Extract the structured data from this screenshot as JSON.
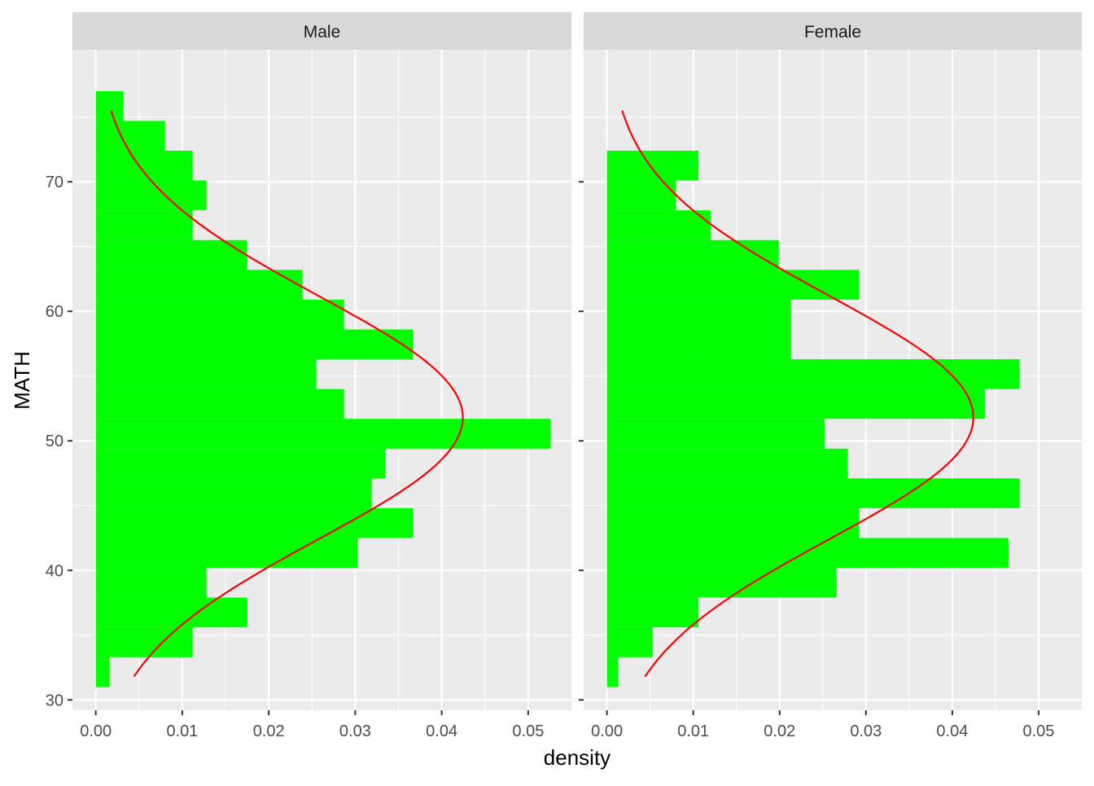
{
  "chart_data": {
    "type": "bar",
    "orientation": "horizontal",
    "xlabel": "density",
    "ylabel": "MATH",
    "xlim": [
      -0.0027,
      0.055
    ],
    "ylim": [
      29.2,
      80.2
    ],
    "x_ticks": [
      0.0,
      0.01,
      0.02,
      0.03,
      0.04,
      0.05
    ],
    "x_tick_labels": [
      "0.00",
      "0.01",
      "0.02",
      "0.03",
      "0.04",
      "0.05"
    ],
    "y_ticks": [
      30,
      40,
      50,
      60,
      70
    ],
    "y_tick_labels": [
      "30",
      "40",
      "50",
      "60",
      "70"
    ],
    "grid": true,
    "colors": {
      "bar_fill": "#00ff00",
      "curve": "#ff0000",
      "panel_bg": "#ebebeb",
      "grid": "#ffffff",
      "strip_bg": "#d9d9d9",
      "text": "#4d4d4d"
    },
    "panels": [
      {
        "strip_label": "Male",
        "bins": [
          {
            "y0": 31.0,
            "y1": 33.3,
            "density": 0.0016
          },
          {
            "y0": 33.3,
            "y1": 35.6,
            "density": 0.0112
          },
          {
            "y0": 35.6,
            "y1": 37.9,
            "density": 0.0175
          },
          {
            "y0": 37.9,
            "y1": 40.2,
            "density": 0.0128
          },
          {
            "y0": 40.2,
            "y1": 42.5,
            "density": 0.0303
          },
          {
            "y0": 42.5,
            "y1": 44.8,
            "density": 0.0367
          },
          {
            "y0": 44.8,
            "y1": 47.1,
            "density": 0.0319
          },
          {
            "y0": 47.1,
            "y1": 49.4,
            "density": 0.0335
          },
          {
            "y0": 49.4,
            "y1": 51.7,
            "density": 0.0526
          },
          {
            "y0": 51.7,
            "y1": 54.0,
            "density": 0.0287
          },
          {
            "y0": 54.0,
            "y1": 56.3,
            "density": 0.0255
          },
          {
            "y0": 56.3,
            "y1": 58.6,
            "density": 0.0367
          },
          {
            "y0": 58.6,
            "y1": 60.9,
            "density": 0.0287
          },
          {
            "y0": 60.9,
            "y1": 63.2,
            "density": 0.0239
          },
          {
            "y0": 63.2,
            "y1": 65.5,
            "density": 0.0175
          },
          {
            "y0": 65.5,
            "y1": 67.8,
            "density": 0.0112
          },
          {
            "y0": 67.8,
            "y1": 70.1,
            "density": 0.0128
          },
          {
            "y0": 70.1,
            "y1": 72.4,
            "density": 0.0112
          },
          {
            "y0": 72.4,
            "y1": 74.7,
            "density": 0.008
          },
          {
            "y0": 74.7,
            "y1": 77.0,
            "density": 0.0032
          }
        ],
        "normal_curve": {
          "mean": 51.8,
          "sd": 9.4,
          "from": 31.8,
          "to": 75.5
        }
      },
      {
        "strip_label": "Female",
        "bins": [
          {
            "y0": 31.0,
            "y1": 33.3,
            "density": 0.0013
          },
          {
            "y0": 33.3,
            "y1": 35.6,
            "density": 0.0053
          },
          {
            "y0": 35.6,
            "y1": 37.9,
            "density": 0.0106
          },
          {
            "y0": 37.9,
            "y1": 40.2,
            "density": 0.0266
          },
          {
            "y0": 40.2,
            "y1": 42.5,
            "density": 0.0465
          },
          {
            "y0": 42.5,
            "y1": 44.8,
            "density": 0.0292
          },
          {
            "y0": 44.8,
            "y1": 47.1,
            "density": 0.0478
          },
          {
            "y0": 47.1,
            "y1": 49.4,
            "density": 0.0279
          },
          {
            "y0": 49.4,
            "y1": 51.7,
            "density": 0.0252
          },
          {
            "y0": 51.7,
            "y1": 54.0,
            "density": 0.0438
          },
          {
            "y0": 54.0,
            "y1": 56.3,
            "density": 0.0478
          },
          {
            "y0": 56.3,
            "y1": 58.6,
            "density": 0.0213
          },
          {
            "y0": 58.6,
            "y1": 60.9,
            "density": 0.0213
          },
          {
            "y0": 60.9,
            "y1": 63.2,
            "density": 0.0292
          },
          {
            "y0": 63.2,
            "y1": 65.5,
            "density": 0.0199
          },
          {
            "y0": 65.5,
            "y1": 67.8,
            "density": 0.012
          },
          {
            "y0": 67.8,
            "y1": 70.1,
            "density": 0.008
          },
          {
            "y0": 70.1,
            "y1": 72.4,
            "density": 0.0106
          }
        ],
        "normal_curve": {
          "mean": 51.8,
          "sd": 9.4,
          "from": 31.8,
          "to": 75.5
        }
      }
    ]
  }
}
